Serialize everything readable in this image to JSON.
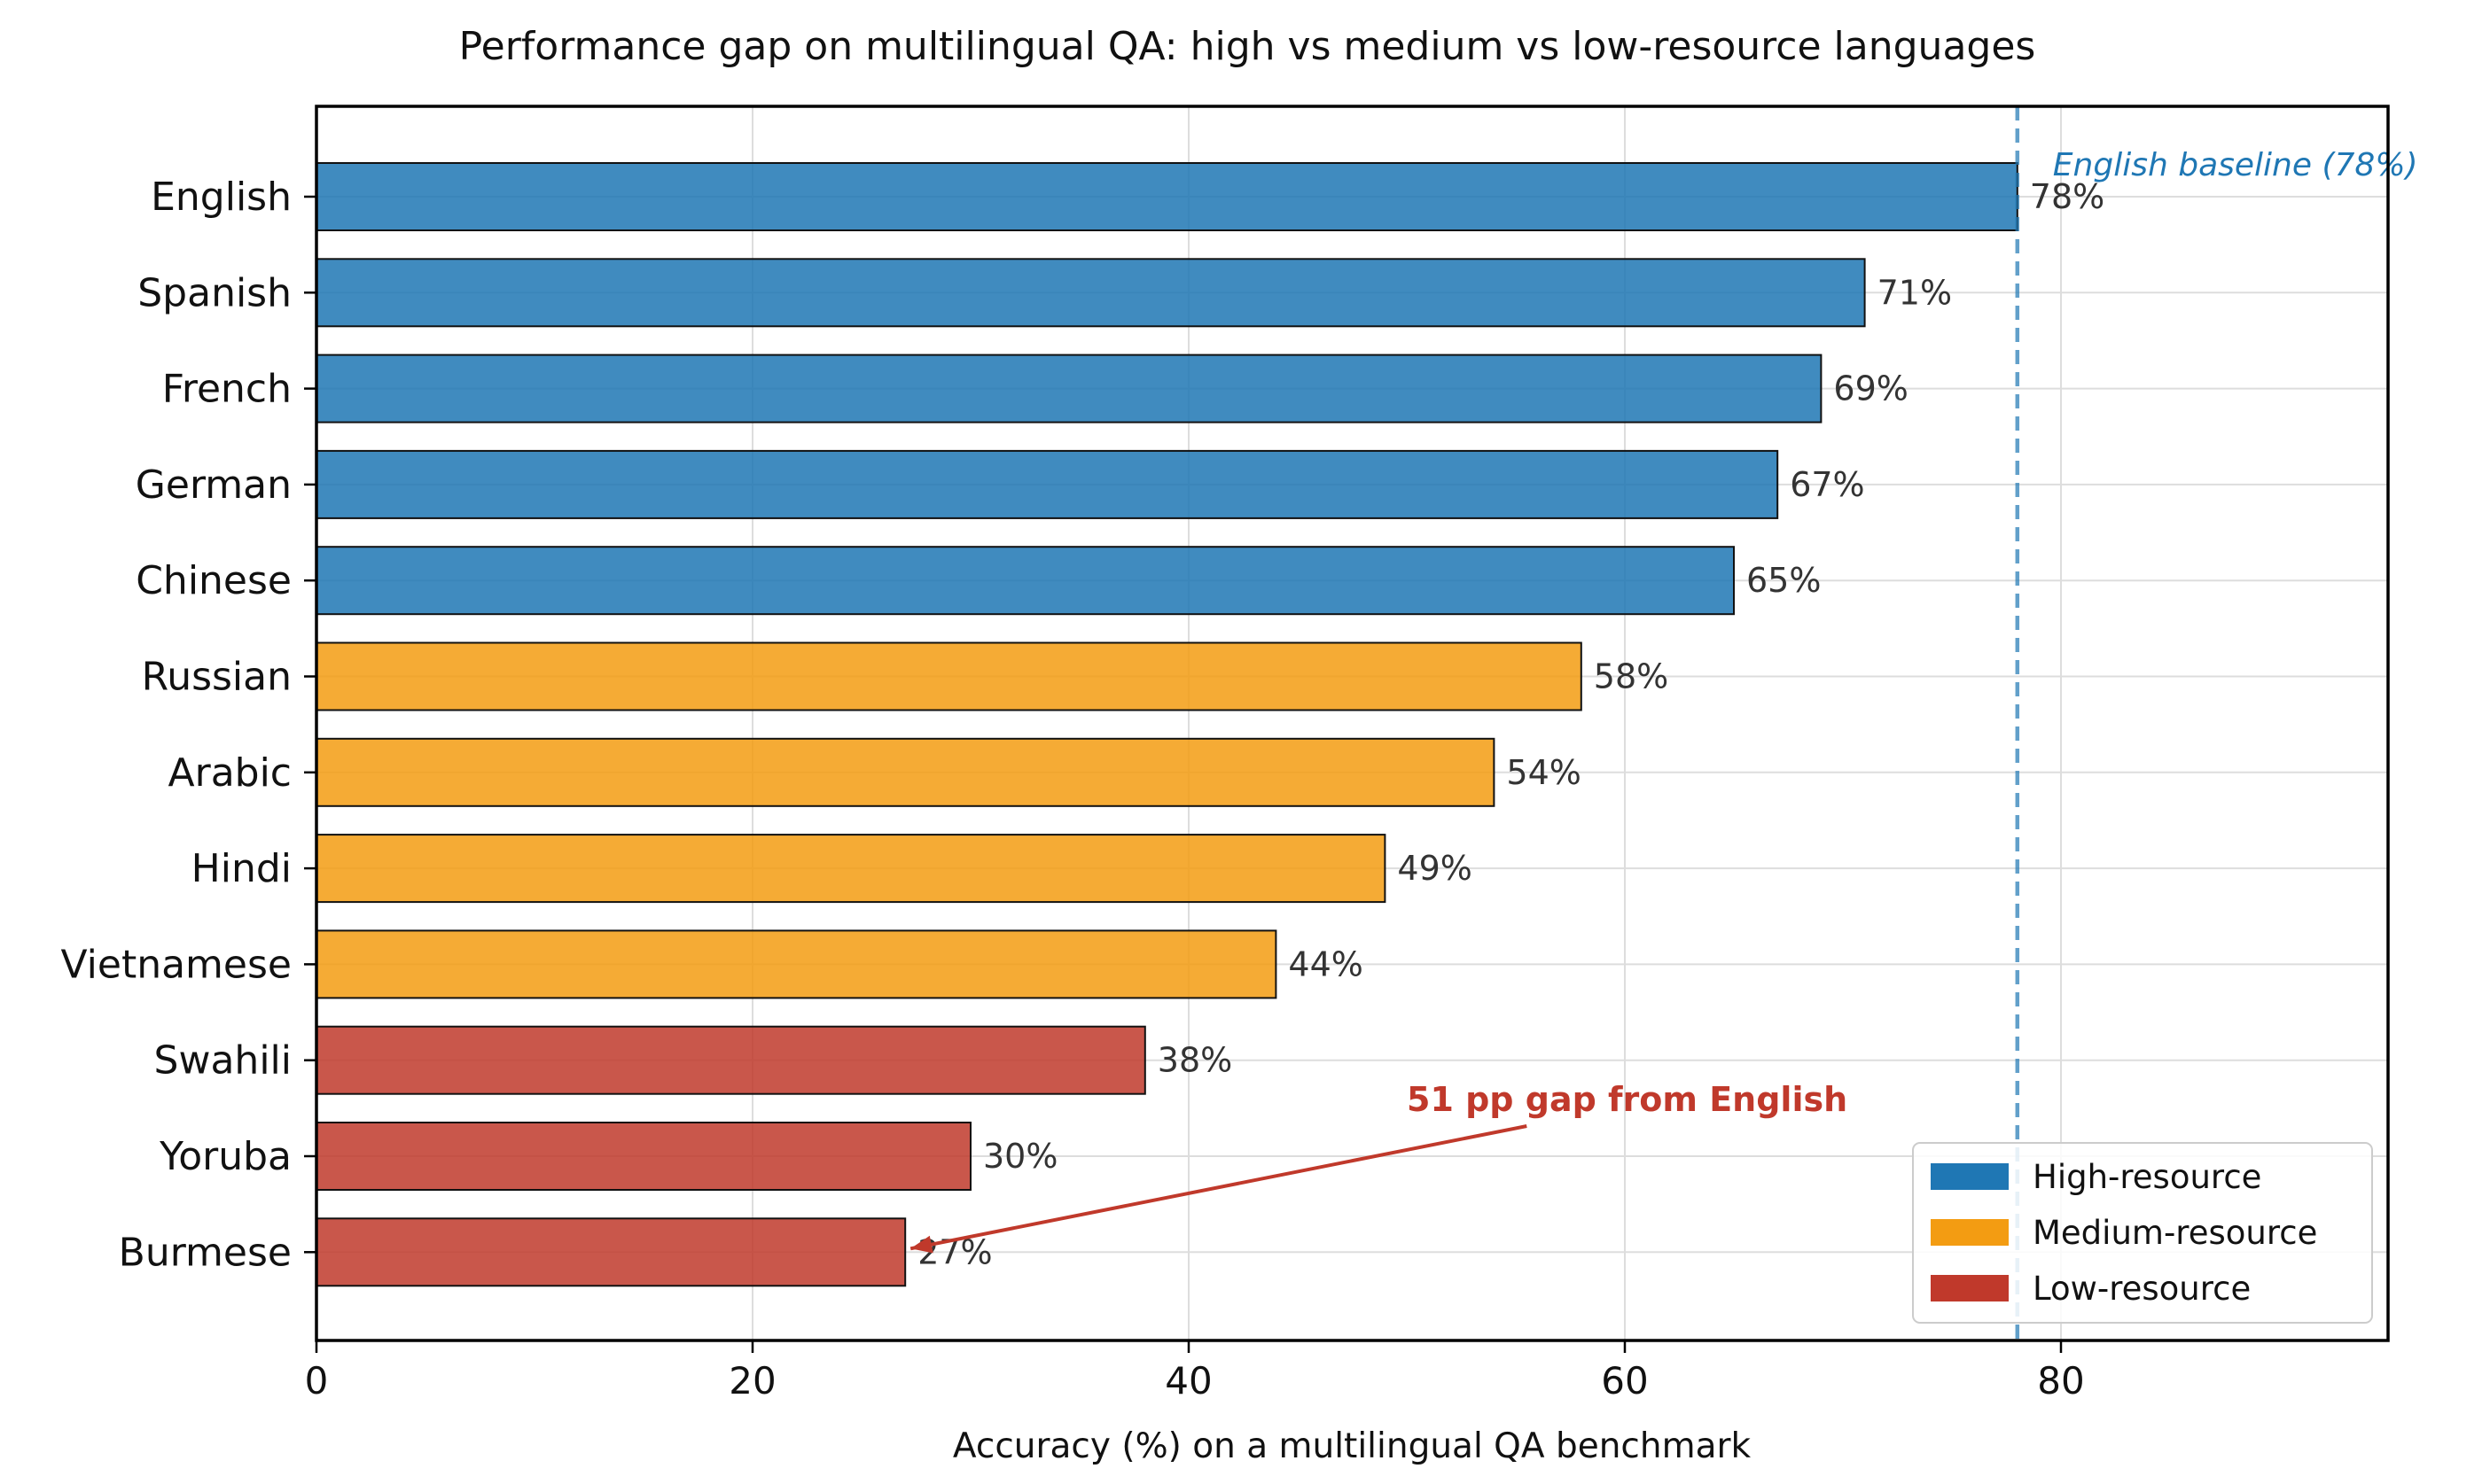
{
  "chart_data": {
    "type": "bar",
    "orientation": "horizontal",
    "title": "Performance gap on multilingual QA: high vs medium vs low-resource languages",
    "xlabel": "Accuracy (%) on a multilingual QA benchmark",
    "ylabel": "",
    "xlim": [
      0,
      95
    ],
    "xticks": [
      "0",
      "20",
      "40",
      "60",
      "80"
    ],
    "grid": true,
    "legend_position": "bottom-right",
    "categories": [
      "English",
      "Spanish",
      "French",
      "German",
      "Chinese",
      "Russian",
      "Arabic",
      "Hindi",
      "Vietnamese",
      "Swahili",
      "Yoruba",
      "Burmese"
    ],
    "values": [
      78,
      71,
      69,
      67,
      65,
      58,
      54,
      49,
      44,
      38,
      30,
      27
    ],
    "value_labels": [
      "78%",
      "71%",
      "69%",
      "67%",
      "65%",
      "58%",
      "54%",
      "49%",
      "44%",
      "38%",
      "30%",
      "27%"
    ],
    "groups": [
      "high",
      "high",
      "high",
      "high",
      "high",
      "medium",
      "medium",
      "medium",
      "medium",
      "low",
      "low",
      "low"
    ],
    "legend": [
      {
        "key": "high",
        "label": "High-resource",
        "color": "#1f77b4"
      },
      {
        "key": "medium",
        "label": "Medium-resource",
        "color": "#f39c12"
      },
      {
        "key": "low",
        "label": "Low-resource",
        "color": "#c0392b"
      }
    ],
    "reference_line": {
      "value": 78,
      "label": "English baseline (78%)",
      "color": "#1f77b4"
    },
    "annotation": {
      "text": "51 pp gap from English",
      "target_category": "Burmese",
      "text_x": 50,
      "text_y_category_offset": 1.6,
      "color": "#c0392b"
    }
  }
}
